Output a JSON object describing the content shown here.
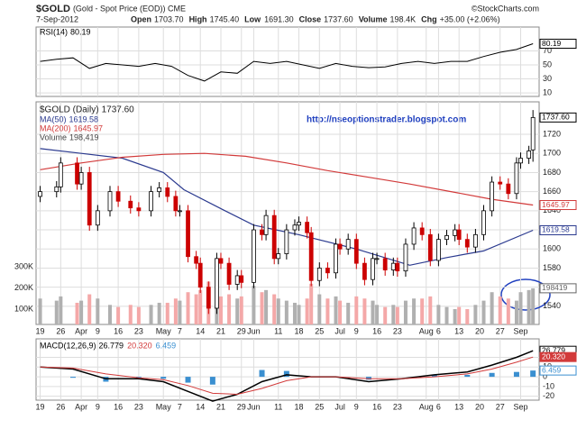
{
  "chart_data": {
    "type": "candlestick",
    "title": "$GOLD",
    "subtitle": "(Gold - Spot Price (EOD)) CME",
    "source": "©StockCharts.com",
    "date": "7-Sep-2012",
    "quote": [
      {
        "label": "Open",
        "value": "1703.70"
      },
      {
        "label": "High",
        "value": "1745.40"
      },
      {
        "label": "Low",
        "value": "1691.30"
      },
      {
        "label": "Close",
        "value": "1737.60"
      },
      {
        "label": "Volume",
        "value": "198.4K"
      },
      {
        "label": "Chg",
        "value": "+35.00 (+2.06%)"
      }
    ],
    "annotation": "http://nseoptionstrader.blogspot.com",
    "price_name": "$GOLD (Daily)",
    "price_label": "1737.60",
    "up_color": "#000000",
    "down_color": "#cc0000",
    "xlim": [
      -1,
      121.5
    ],
    "xticks": [
      {
        "value": 0,
        "label": "19"
      },
      {
        "value": 5,
        "label": "26"
      },
      {
        "value": 10,
        "label": "Apr"
      },
      {
        "value": 14,
        "label": "9"
      },
      {
        "value": 19,
        "label": "16"
      },
      {
        "value": 24,
        "label": "23"
      },
      {
        "value": 30,
        "label": "May"
      },
      {
        "value": 34,
        "label": "7"
      },
      {
        "value": 39,
        "label": "14"
      },
      {
        "value": 44,
        "label": "21"
      },
      {
        "value": 49,
        "label": "29"
      },
      {
        "value": 52,
        "label": "Jun"
      },
      {
        "value": 58,
        "label": "11"
      },
      {
        "value": 63,
        "label": "18"
      },
      {
        "value": 68,
        "label": "25"
      },
      {
        "value": 73,
        "label": "Jul"
      },
      {
        "value": 77,
        "label": "9"
      },
      {
        "value": 82,
        "label": "16"
      },
      {
        "value": 87,
        "label": "23"
      },
      {
        "value": 94,
        "label": "Aug"
      },
      {
        "value": 97,
        "label": "6"
      },
      {
        "value": 102,
        "label": "13"
      },
      {
        "value": 107,
        "label": "20"
      },
      {
        "value": 112,
        "label": "27"
      },
      {
        "value": 117,
        "label": "Sep"
      }
    ],
    "ylim": [
      1521,
      1754
    ],
    "yticks": [
      1540,
      1560,
      1580,
      1600,
      1620,
      1640,
      1660,
      1680,
      1700,
      1720
    ],
    "x": [
      0,
      4,
      5,
      9,
      10,
      12,
      14,
      17,
      19,
      22,
      24,
      27,
      29,
      31,
      33,
      34,
      36,
      38,
      39,
      41,
      43,
      44,
      46,
      48,
      49,
      52,
      54,
      55,
      57,
      58,
      60,
      62,
      63,
      65,
      66,
      68,
      70,
      72,
      73,
      75,
      77,
      79,
      81,
      82,
      84,
      86,
      87,
      89,
      91,
      93,
      95,
      97,
      99,
      101,
      102,
      104,
      106,
      108,
      110,
      112,
      114,
      116,
      117,
      119,
      120
    ],
    "open": [
      1655,
      1660,
      1665,
      1690,
      1668,
      1680,
      1625,
      1640,
      1660,
      1650,
      1643,
      1640,
      1660,
      1664,
      1655,
      1640,
      1640,
      1592,
      1585,
      1560,
      1538,
      1590,
      1585,
      1563,
      1572,
      1565,
      1620,
      1615,
      1635,
      1590,
      1595,
      1620,
      1625,
      1628,
      1617,
      1567,
      1580,
      1575,
      1605,
      1600,
      1610,
      1585,
      1568,
      1590,
      1590,
      1578,
      1585,
      1577,
      1605,
      1622,
      1615,
      1588,
      1610,
      1614,
      1620,
      1610,
      1602,
      1615,
      1640,
      1670,
      1668,
      1658,
      1690,
      1695,
      1703.7
    ],
    "high": [
      1666,
      1671,
      1696,
      1696,
      1686,
      1686,
      1646,
      1666,
      1666,
      1656,
      1649,
      1666,
      1670,
      1670,
      1661,
      1646,
      1646,
      1598,
      1591,
      1566,
      1596,
      1596,
      1591,
      1578,
      1578,
      1626,
      1626,
      1641,
      1641,
      1601,
      1626,
      1631,
      1634,
      1634,
      1623,
      1586,
      1586,
      1611,
      1611,
      1616,
      1616,
      1591,
      1596,
      1596,
      1596,
      1591,
      1591,
      1611,
      1628,
      1628,
      1621,
      1616,
      1620,
      1626,
      1626,
      1616,
      1621,
      1646,
      1676,
      1676,
      1674,
      1696,
      1701,
      1708,
      1745.4
    ],
    "low": [
      1649,
      1654,
      1659,
      1662,
      1662,
      1619,
      1619,
      1634,
      1644,
      1637,
      1634,
      1634,
      1654,
      1649,
      1634,
      1634,
      1586,
      1579,
      1554,
      1532,
      1532,
      1579,
      1557,
      1557,
      1559,
      1559,
      1609,
      1609,
      1584,
      1584,
      1589,
      1614,
      1619,
      1611,
      1561,
      1561,
      1569,
      1569,
      1594,
      1594,
      1579,
      1562,
      1562,
      1584,
      1572,
      1572,
      1571,
      1571,
      1599,
      1609,
      1582,
      1582,
      1604,
      1608,
      1604,
      1596,
      1596,
      1609,
      1634,
      1662,
      1652,
      1652,
      1684,
      1689,
      1691.3
    ],
    "close": [
      1660,
      1665,
      1690,
      1668,
      1680,
      1625,
      1640,
      1660,
      1650,
      1643,
      1640,
      1660,
      1664,
      1655,
      1640,
      1640,
      1592,
      1585,
      1560,
      1538,
      1590,
      1585,
      1563,
      1572,
      1565,
      1620,
      1615,
      1635,
      1590,
      1595,
      1620,
      1625,
      1628,
      1617,
      1567,
      1580,
      1575,
      1605,
      1600,
      1610,
      1585,
      1568,
      1590,
      1590,
      1578,
      1585,
      1577,
      1605,
      1622,
      1615,
      1588,
      1610,
      1614,
      1620,
      1610,
      1602,
      1615,
      1640,
      1670,
      1668,
      1658,
      1690,
      1695,
      1702.6,
      1737.6
    ],
    "overlays": [
      {
        "name": "MA(50)",
        "color": "#2b3a8f",
        "last_label": "1619.58",
        "x": [
          0,
          10,
          20,
          30,
          35,
          45,
          52,
          63,
          77,
          90,
          99,
          108,
          120
        ],
        "values": [
          1705,
          1700,
          1695,
          1680,
          1662,
          1640,
          1625,
          1615,
          1600,
          1583,
          1591,
          1598,
          1619.58
        ]
      },
      {
        "name": "MA(200)",
        "color": "#d23a3a",
        "last_label": "1645.97",
        "x": [
          0,
          10,
          20,
          30,
          40,
          50,
          60,
          70,
          80,
          90,
          100,
          110,
          120
        ],
        "values": [
          1683,
          1690,
          1696,
          1699,
          1700,
          1697,
          1690,
          1682,
          1675,
          1668,
          1660,
          1652,
          1645.97
        ]
      }
    ],
    "volume": {
      "name": "Volume",
      "legend_label": "198,419",
      "box_label": "198419",
      "up_color": "#b0b0b0",
      "down_color": "#f4a8a8",
      "values": [
        150000,
        140000,
        160000,
        130000,
        140000,
        170000,
        150000,
        120000,
        110000,
        120000,
        110000,
        120000,
        130000,
        130000,
        150000,
        140000,
        180000,
        170000,
        190000,
        230000,
        200000,
        160000,
        170000,
        150000,
        160000,
        210000,
        180000,
        190000,
        170000,
        150000,
        140000,
        130000,
        120000,
        150000,
        220000,
        170000,
        150000,
        160000,
        140000,
        130000,
        160000,
        150000,
        140000,
        120000,
        110000,
        120000,
        110000,
        140000,
        150000,
        150000,
        160000,
        120000,
        110000,
        100000,
        110000,
        100000,
        120000,
        140000,
        180000,
        160000,
        150000,
        140000,
        180000,
        190000,
        198419
      ],
      "ylim": [
        27700,
        1078700
      ],
      "yticks": [
        {
          "value": 100000,
          "label": "100K"
        },
        {
          "value": 200000,
          "label": "200K"
        },
        {
          "value": 300000,
          "label": "300K"
        }
      ]
    },
    "rsi": {
      "name": "RSI(14)",
      "last_label": "80.19",
      "color": "#000000",
      "x": [
        0,
        4,
        8,
        12,
        16,
        20,
        24,
        28,
        32,
        36,
        40,
        44,
        48,
        52,
        56,
        60,
        64,
        68,
        72,
        76,
        80,
        84,
        88,
        92,
        96,
        100,
        104,
        108,
        112,
        116,
        120
      ],
      "values": [
        55,
        58,
        60,
        45,
        52,
        50,
        48,
        52,
        48,
        35,
        27,
        40,
        38,
        55,
        52,
        55,
        50,
        45,
        52,
        48,
        46,
        47,
        52,
        55,
        52,
        55,
        55,
        62,
        68,
        72,
        80.19
      ],
      "ylim": [
        5,
        104
      ],
      "yticks": [
        10,
        30,
        50,
        70
      ]
    },
    "macd": {
      "name": "MACD(12,26,9)",
      "macd_label": "26.779",
      "signal_label": "20.320",
      "hist_label": "6.459",
      "macd_color": "#000000",
      "signal_color": "#d23a3a",
      "hist_color": "#3a8fd0",
      "x": [
        0,
        8,
        16,
        24,
        30,
        36,
        42,
        48,
        54,
        60,
        66,
        72,
        80,
        88,
        96,
        104,
        110,
        116,
        120
      ],
      "macd_values": [
        10,
        8,
        -2,
        -2,
        -5,
        -15,
        -25,
        -18,
        -5,
        2,
        0,
        0,
        -5,
        -2,
        2,
        5,
        12,
        20,
        26.779
      ],
      "signal_values": [
        10,
        9,
        3,
        -1,
        -3,
        -9,
        -17,
        -18,
        -12,
        -4,
        0,
        0,
        -2,
        -2,
        0,
        3,
        8,
        15,
        20.32
      ],
      "histogram": [
        0,
        -1,
        -5,
        -1,
        -2,
        -6,
        -8,
        0,
        7,
        6,
        0,
        0,
        -3,
        0,
        2,
        2,
        4,
        5,
        6.459
      ],
      "ylim": [
        -24,
        39
      ],
      "yticks": [
        -20,
        -10,
        0,
        10,
        20
      ]
    }
  }
}
